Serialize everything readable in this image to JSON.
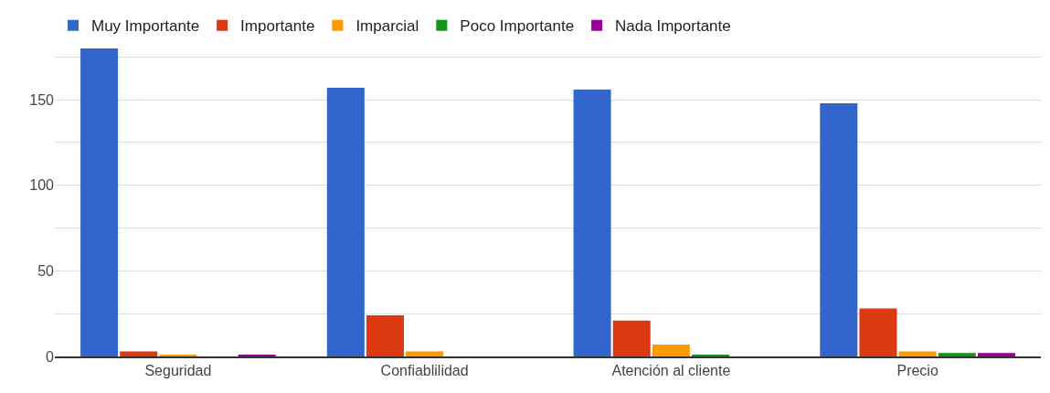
{
  "chart_data": {
    "type": "bar",
    "categories": [
      "Seguridad",
      "Confiablilidad",
      "Atención al cliente",
      "Precio"
    ],
    "series": [
      {
        "name": "Muy Importante",
        "color": "#3366cc",
        "values": [
          180,
          157,
          156,
          148
        ]
      },
      {
        "name": "Importante",
        "color": "#dc3912",
        "values": [
          3,
          24,
          21,
          28
        ]
      },
      {
        "name": "Imparcial",
        "color": "#ff9900",
        "values": [
          1,
          3,
          7,
          3
        ]
      },
      {
        "name": "Poco Importante",
        "color": "#109618",
        "values": [
          0,
          0,
          1,
          2
        ]
      },
      {
        "name": "Nada Importante",
        "color": "#990099",
        "values": [
          1,
          0,
          0,
          2
        ]
      }
    ],
    "ylim": [
      0,
      180
    ],
    "yticks": [
      0,
      {
        "value": 25,
        "label": null
      },
      50,
      {
        "value": 75,
        "label": null
      },
      100,
      {
        "value": 125,
        "label": null
      },
      150,
      {
        "value": 175,
        "label": null
      }
    ],
    "grid": "y",
    "legend": "top left"
  }
}
